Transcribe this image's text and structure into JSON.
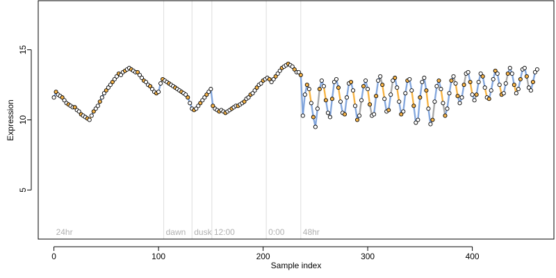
{
  "chart_data": {
    "type": "scatter",
    "xlabel": "Sample index",
    "ylabel": "Expression",
    "xlim": [
      -15,
      478
    ],
    "ylim": [
      1.5,
      18.5
    ],
    "x_ticks": [
      0,
      100,
      200,
      300,
      400
    ],
    "y_ticks": [
      5,
      10,
      15
    ],
    "grid": false,
    "legend": "none",
    "region_markers": [
      {
        "x": 0,
        "label": "24hr",
        "line": false
      },
      {
        "x": 105,
        "label": "dawn",
        "line": true
      },
      {
        "x": 132,
        "label": "dusk",
        "line": true
      },
      {
        "x": 151,
        "label": "12:00",
        "line": true
      },
      {
        "x": 203,
        "label": "0:00",
        "line": true
      },
      {
        "x": 236,
        "label": "48hr",
        "line": true
      }
    ],
    "series": [
      {
        "style": "points-with-trend-line",
        "line_colors": [
          "#6f98d8",
          "#f5a623",
          "#9a9a9a"
        ],
        "point_fill_colors": [
          "#ffffff",
          "#f6b44a"
        ],
        "x": [
          0,
          2,
          4,
          6,
          8,
          10,
          12,
          14,
          16,
          18,
          20,
          22,
          24,
          26,
          28,
          30,
          32,
          34,
          36,
          38,
          40,
          42,
          44,
          46,
          48,
          50,
          52,
          54,
          56,
          58,
          60,
          62,
          64,
          66,
          68,
          70,
          72,
          74,
          76,
          78,
          80,
          82,
          84,
          86,
          88,
          90,
          92,
          94,
          96,
          98,
          100,
          102,
          104,
          106,
          108,
          110,
          112,
          114,
          116,
          118,
          120,
          122,
          124,
          126,
          128,
          130,
          132,
          134,
          136,
          138,
          140,
          142,
          144,
          146,
          148,
          150,
          152,
          154,
          156,
          158,
          160,
          162,
          164,
          166,
          168,
          170,
          172,
          174,
          176,
          178,
          180,
          182,
          184,
          186,
          188,
          190,
          192,
          194,
          196,
          198,
          200,
          202,
          204,
          206,
          208,
          210,
          212,
          214,
          216,
          218,
          220,
          222,
          224,
          226,
          228,
          230,
          232,
          234,
          236,
          238,
          240,
          242,
          244,
          246,
          248,
          250,
          252,
          254,
          256,
          258,
          260,
          262,
          264,
          266,
          268,
          270,
          272,
          274,
          276,
          278,
          280,
          282,
          284,
          286,
          288,
          290,
          292,
          294,
          296,
          298,
          300,
          302,
          304,
          306,
          308,
          310,
          312,
          314,
          316,
          318,
          320,
          322,
          324,
          326,
          328,
          330,
          332,
          334,
          336,
          338,
          340,
          342,
          344,
          346,
          348,
          350,
          352,
          354,
          356,
          358,
          360,
          362,
          364,
          366,
          368,
          370,
          372,
          374,
          376,
          378,
          380,
          382,
          384,
          386,
          388,
          390,
          392,
          394,
          396,
          398,
          400,
          402,
          404,
          406,
          408,
          410,
          412,
          414,
          416,
          418,
          420,
          422,
          424,
          426,
          428,
          430,
          432,
          434,
          436,
          438,
          440,
          442,
          444,
          446,
          448,
          450,
          452,
          454,
          456,
          458,
          460,
          462
        ],
        "y": [
          11.6,
          12.0,
          11.8,
          11.7,
          11.6,
          11.4,
          11.2,
          11.1,
          11.0,
          10.9,
          10.9,
          10.7,
          10.6,
          10.4,
          10.3,
          10.2,
          10.1,
          10.0,
          10.3,
          10.6,
          10.8,
          11.0,
          11.3,
          11.6,
          11.9,
          12.1,
          12.3,
          12.5,
          12.7,
          12.9,
          13.1,
          13.3,
          13.2,
          13.4,
          13.5,
          13.6,
          13.7,
          13.6,
          13.5,
          13.4,
          13.4,
          13.2,
          13.0,
          12.8,
          12.7,
          12.5,
          12.4,
          12.2,
          12.0,
          11.9,
          12.0,
          12.6,
          12.9,
          12.8,
          12.7,
          12.6,
          12.5,
          12.4,
          12.3,
          12.2,
          12.1,
          12.0,
          11.9,
          11.8,
          11.6,
          11.2,
          10.8,
          10.7,
          10.8,
          11.0,
          11.2,
          11.4,
          11.6,
          11.8,
          12.0,
          12.2,
          11.0,
          10.8,
          10.7,
          10.6,
          10.7,
          10.6,
          10.5,
          10.6,
          10.7,
          10.8,
          10.9,
          11.0,
          11.0,
          11.1,
          11.2,
          11.3,
          11.5,
          11.6,
          11.8,
          11.9,
          12.1,
          12.3,
          12.5,
          12.6,
          12.8,
          12.9,
          13.0,
          12.9,
          12.7,
          12.9,
          13.1,
          13.3,
          13.5,
          13.7,
          13.8,
          13.9,
          14.0,
          13.9,
          13.8,
          13.6,
          13.4,
          13.4,
          13.2,
          10.3,
          11.8,
          12.5,
          12.2,
          11.2,
          10.2,
          9.5,
          10.8,
          12.2,
          12.8,
          12.4,
          11.4,
          10.5,
          10.2,
          11.5,
          12.7,
          12.9,
          12.3,
          11.3,
          10.5,
          10.4,
          11.6,
          12.6,
          12.7,
          12.1,
          11.0,
          10.0,
          10.3,
          11.4,
          12.4,
          12.8,
          12.2,
          11.1,
          10.3,
          10.4,
          11.7,
          12.8,
          13.1,
          12.5,
          11.5,
          10.6,
          10.7,
          11.8,
          12.8,
          13.0,
          12.3,
          11.3,
          10.4,
          10.6,
          11.9,
          12.8,
          12.9,
          12.1,
          11.0,
          9.8,
          10.0,
          11.6,
          12.7,
          13.0,
          12.1,
          10.8,
          9.7,
          10.0,
          11.3,
          12.4,
          12.8,
          12.2,
          11.2,
          10.3,
          10.8,
          11.9,
          12.8,
          13.1,
          12.6,
          11.7,
          11.2,
          11.6,
          12.5,
          13.3,
          13.4,
          12.7,
          11.8,
          11.4,
          11.8,
          12.7,
          13.3,
          13.1,
          12.3,
          11.6,
          11.5,
          12.1,
          12.9,
          13.5,
          13.3,
          12.5,
          11.8,
          11.9,
          12.6,
          13.3,
          13.7,
          13.3,
          12.5,
          11.9,
          12.2,
          12.9,
          13.6,
          13.7,
          13.1,
          12.3,
          12.1,
          12.7,
          13.4,
          13.6
        ]
      }
    ]
  }
}
